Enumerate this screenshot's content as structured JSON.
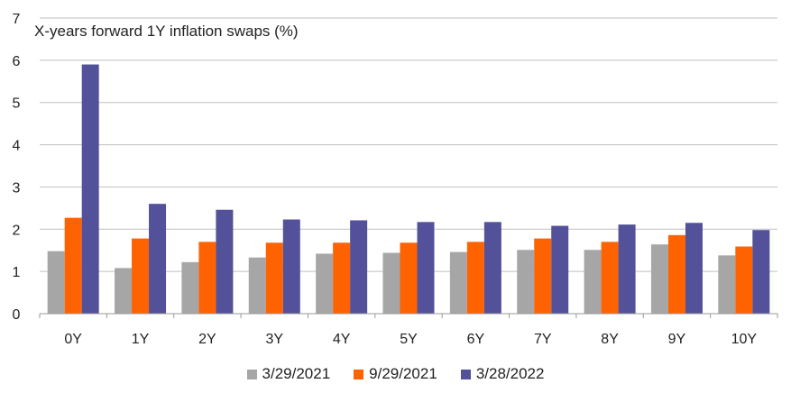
{
  "chart_data": {
    "type": "bar",
    "title": "X-years forward 1Y inflation swaps (%)",
    "categories": [
      "0Y",
      "1Y",
      "2Y",
      "3Y",
      "4Y",
      "5Y",
      "6Y",
      "7Y",
      "8Y",
      "9Y",
      "10Y"
    ],
    "series": [
      {
        "name": "3/29/2021",
        "color": "#a6a6a6",
        "values": [
          1.48,
          1.08,
          1.22,
          1.33,
          1.42,
          1.44,
          1.46,
          1.51,
          1.51,
          1.64,
          1.38
        ]
      },
      {
        "name": "9/29/2021",
        "color": "#ff6200",
        "values": [
          2.27,
          1.78,
          1.7,
          1.68,
          1.68,
          1.68,
          1.7,
          1.78,
          1.7,
          1.86,
          1.59
        ]
      },
      {
        "name": "3/28/2022",
        "color": "#525199",
        "values": [
          5.9,
          2.6,
          2.46,
          2.23,
          2.21,
          2.17,
          2.17,
          2.08,
          2.11,
          2.15,
          1.98
        ]
      }
    ],
    "ylim": [
      0,
      7
    ],
    "yticks": [
      0,
      1,
      2,
      3,
      4,
      5,
      6,
      7
    ],
    "grid": true,
    "legend": "bottom"
  }
}
